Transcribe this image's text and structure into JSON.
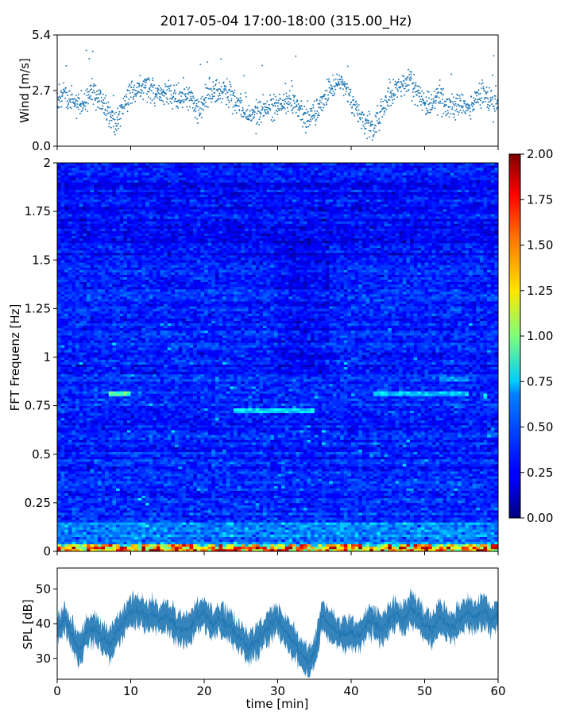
{
  "title": "2017-05-04 17:00-18:00 (315.00_Hz)",
  "chart_data": [
    {
      "type": "scatter",
      "name": "wind",
      "ylabel": "Wind [m/s]",
      "xlim": [
        0,
        60
      ],
      "ylim": [
        0,
        5.4
      ],
      "yticks": [
        "0.0",
        "2.7",
        "5.4"
      ],
      "color": "#1f77b4",
      "profile_x": [
        0,
        1,
        2,
        3,
        4,
        5,
        6,
        7,
        8,
        9,
        10,
        11,
        12,
        13,
        14,
        15,
        16,
        17,
        18,
        19,
        20,
        21,
        22,
        23,
        24,
        25,
        26,
        27,
        28,
        29,
        30,
        31,
        32,
        33,
        34,
        35,
        36,
        37,
        38,
        39,
        40,
        41,
        42,
        43,
        44,
        45,
        46,
        47,
        48,
        49,
        50,
        51,
        52,
        53,
        54,
        55,
        56,
        57,
        58,
        59,
        60
      ],
      "profile_y": [
        2.3,
        2.5,
        2.1,
        2.0,
        2.3,
        2.6,
        2.2,
        1.6,
        1.1,
        1.8,
        2.6,
        2.7,
        2.9,
        2.6,
        2.5,
        2.6,
        2.4,
        2.2,
        2.3,
        1.7,
        2.2,
        2.6,
        2.7,
        2.8,
        2.3,
        1.9,
        1.5,
        1.4,
        1.8,
        1.9,
        2.0,
        2.1,
        2.2,
        1.8,
        1.3,
        1.6,
        2.2,
        2.6,
        3.1,
        2.9,
        2.1,
        1.6,
        1.2,
        0.8,
        1.6,
        2.4,
        2.7,
        3.0,
        3.2,
        2.6,
        2.0,
        2.2,
        2.4,
        1.9,
        2.1,
        2.0,
        1.9,
        2.3,
        2.6,
        2.2,
        2.0
      ]
    },
    {
      "type": "heatmap",
      "name": "spectrogram",
      "ylabel": "FFT Frequenz [Hz]",
      "xlim": [
        0,
        60
      ],
      "ylim": [
        0,
        2
      ],
      "yticks": [
        "0",
        "0.25",
        "0.5",
        "0.75",
        "1",
        "1.25",
        "1.5",
        "1.75",
        "2"
      ],
      "colormap": "jet",
      "clim": [
        0,
        2
      ],
      "colorbar_ticks": [
        "0.00",
        "0.25",
        "0.50",
        "0.75",
        "1.00",
        "1.25",
        "1.50",
        "1.75",
        "2.00"
      ],
      "bright_bands": [
        {
          "from_min": 7,
          "to_min": 10,
          "freq_hz": 0.81,
          "value": 0.95
        },
        {
          "from_min": 24,
          "to_min": 35,
          "freq_hz": 0.73,
          "value": 0.75
        },
        {
          "from_min": 43,
          "to_min": 56,
          "freq_hz": 0.81,
          "value": 0.7
        },
        {
          "from_min": 52,
          "to_min": 56,
          "freq_hz": 0.89,
          "value": 0.6
        }
      ]
    },
    {
      "type": "area",
      "name": "spl",
      "ylabel": "SPL [dB]",
      "xlabel": "time [min]",
      "xlim": [
        0,
        60
      ],
      "ylim": [
        24,
        56
      ],
      "xticks": [
        "0",
        "10",
        "20",
        "30",
        "40",
        "50",
        "60"
      ],
      "yticks": [
        "30",
        "40",
        "50"
      ],
      "color": "#1f77b4",
      "profile_x": [
        0,
        1,
        2,
        3,
        4,
        5,
        6,
        7,
        8,
        9,
        10,
        11,
        12,
        13,
        14,
        15,
        16,
        17,
        18,
        19,
        20,
        21,
        22,
        23,
        24,
        25,
        26,
        27,
        28,
        29,
        30,
        31,
        32,
        33,
        34,
        35,
        36,
        37,
        38,
        39,
        40,
        41,
        42,
        43,
        44,
        45,
        46,
        47,
        48,
        49,
        50,
        51,
        52,
        53,
        54,
        55,
        56,
        57,
        58,
        59,
        60
      ],
      "profile_mid": [
        39,
        41,
        37,
        32,
        38,
        39,
        36,
        34,
        37,
        40,
        43,
        44,
        42,
        43,
        41,
        42,
        40,
        38,
        39,
        42,
        43,
        40,
        41,
        40,
        38,
        36,
        33,
        35,
        37,
        40,
        41,
        38,
        35,
        32,
        29,
        31,
        42,
        40,
        38,
        37,
        38,
        36,
        40,
        41,
        38,
        41,
        43,
        41,
        44,
        43,
        40,
        38,
        42,
        40,
        39,
        42,
        43,
        42,
        44,
        41,
        42
      ],
      "profile_spread": 4
    }
  ]
}
